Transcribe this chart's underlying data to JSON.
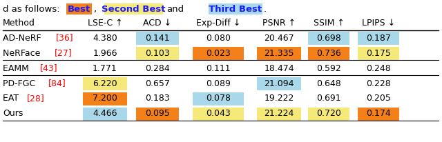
{
  "header_text": "d as follows:",
  "legend": [
    {
      "label": "Best",
      "bg": "#F4801A",
      "text_color": "#1a1aff"
    },
    {
      "label": "Second Best",
      "bg": "#F5E97A",
      "text_color": "#1a1aff"
    },
    {
      "label": "Third Best",
      "bg": "#A8D8EA",
      "text_color": "#1a1aff"
    }
  ],
  "columns": [
    "Method",
    "LSE-C ↑",
    "ACD ↓",
    "Exp-Diff ↓",
    "PSNR ↑",
    "SSIM ↑",
    "LPIPS ↓"
  ],
  "rows": [
    {
      "method": "AD-NeRF [36]",
      "method_base": "AD-NeRF ",
      "method_ref": "[36]",
      "method_ref_color": "#ff0000",
      "values": [
        "4.380",
        "0.141",
        "0.080",
        "20.467",
        "0.698",
        "0.187"
      ],
      "cell_colors": [
        "none",
        "#A8D8EA",
        "none",
        "none",
        "#A8D8EA",
        "#A8D8EA"
      ]
    },
    {
      "method": "NeRFace [27]",
      "method_base": "NeRFace ",
      "method_ref": "[27]",
      "method_ref_color": "#ff0000",
      "values": [
        "1.966",
        "0.103",
        "0.023",
        "21.335",
        "0.736",
        "0.175"
      ],
      "cell_colors": [
        "none",
        "#F5E97A",
        "#F4801A",
        "#F4801A",
        "#F4801A",
        "#F5E97A"
      ]
    },
    {
      "method": "EAMM [43]",
      "method_base": "EAMM ",
      "method_ref": "[43]",
      "method_ref_color": "#ff0000",
      "values": [
        "1.771",
        "0.284",
        "0.111",
        "18.474",
        "0.592",
        "0.248"
      ],
      "cell_colors": [
        "none",
        "none",
        "none",
        "none",
        "none",
        "none"
      ]
    },
    {
      "method": "PD-FGC [84]",
      "method_base": "PD-FGC ",
      "method_ref": "[84]",
      "method_ref_color": "#ff0000",
      "values": [
        "6.220",
        "0.657",
        "0.089",
        "21.094",
        "0.648",
        "0.228"
      ],
      "cell_colors": [
        "#F5E97A",
        "none",
        "none",
        "#A8D8EA",
        "none",
        "none"
      ]
    },
    {
      "method": "EAT [28]",
      "method_base": "EAT ",
      "method_ref": "[28]",
      "method_ref_color": "#ff0000",
      "values": [
        "7.200",
        "0.183",
        "0.078",
        "19.222",
        "0.691",
        "0.205"
      ],
      "cell_colors": [
        "#F4801A",
        "none",
        "#A8D8EA",
        "none",
        "none",
        "none"
      ]
    },
    {
      "method": "Ours",
      "method_base": "Ours",
      "method_ref": "",
      "method_ref_color": "none",
      "values": [
        "4.466",
        "0.095",
        "0.043",
        "21.224",
        "0.720",
        "0.174"
      ],
      "cell_colors": [
        "#A8D8EA",
        "#F4801A",
        "#F5E97A",
        "#F5E97A",
        "#F5E97A",
        "#F4801A"
      ]
    }
  ],
  "separator_after_rows": [
    1,
    2
  ],
  "bg_color": "#ffffff",
  "text_color": "#000000",
  "header_color": "#000000",
  "figsize": [
    6.4,
    2.06
  ],
  "dpi": 100
}
